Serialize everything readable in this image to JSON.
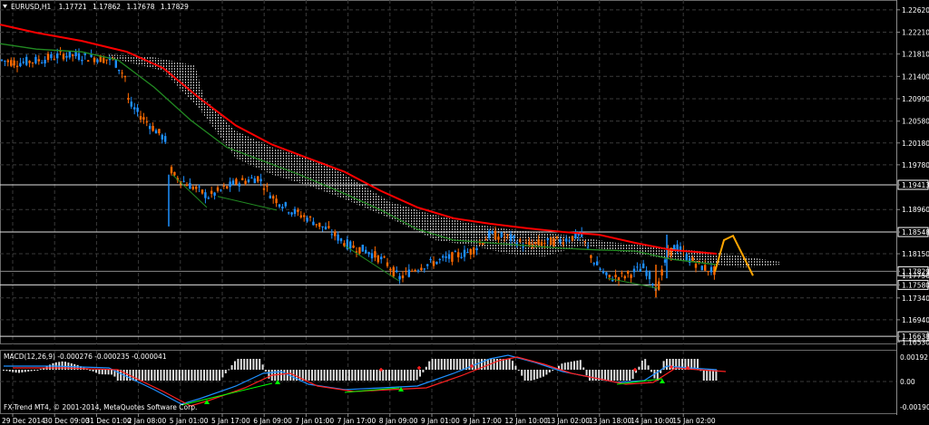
{
  "header": {
    "symbol": "EURUSD,H1",
    "open": "1.17721",
    "high": "1.17862",
    "low": "1.17678",
    "close": "1.17829"
  },
  "price_axis": {
    "ticks": [
      "1.22620",
      "1.22210",
      "1.21810",
      "1.21400",
      "1.20990",
      "1.20580",
      "1.20180",
      "1.19780",
      "1.19413",
      "1.18960",
      "1.18548",
      "1.18150",
      "1.17829",
      "1.17750",
      "1.17580",
      "1.17340",
      "1.16940",
      "1.16638",
      "1.16530"
    ],
    "boxed": [
      "1.19413",
      "1.18548",
      "1.17829",
      "1.17580",
      "1.16638"
    ]
  },
  "time_axis": {
    "labels": [
      "29 Dec 2014",
      "30 Dec 09:00",
      "31 Dec 01:00",
      "2 Jan 08:00",
      "5 Jan 01:00",
      "5 Jan 17:00",
      "6 Jan 09:00",
      "7 Jan 01:00",
      "7 Jan 17:00",
      "8 Jan 09:00",
      "9 Jan 01:00",
      "9 Jan 17:00",
      "12 Jan 10:00",
      "13 Jan 02:00",
      "13 Jan 18:00",
      "14 Jan 10:00",
      "15 Jan 02:00"
    ]
  },
  "macd": {
    "label": "MACD(12,26,9) -0.000276 -0.000235 -0.000041",
    "ticks": [
      "0.00192",
      "0.00",
      "-0.001905"
    ]
  },
  "copyright": "FX-Trend MT4, © 2001-2014, MetaQuotes Software Corp.",
  "colors": {
    "background": "#000000",
    "grid": "#3a3a3a",
    "bull_candle": "#1e90ff",
    "bear_candle": "#ff6a00",
    "ma_slow": "#ff0000",
    "ma_fast": "#228b22",
    "cloud": "#d8d8d8",
    "projection": "#ffa500",
    "macd_main": "#1e90ff",
    "macd_signal": "#ff2020",
    "arrows": "#00ff00"
  }
}
